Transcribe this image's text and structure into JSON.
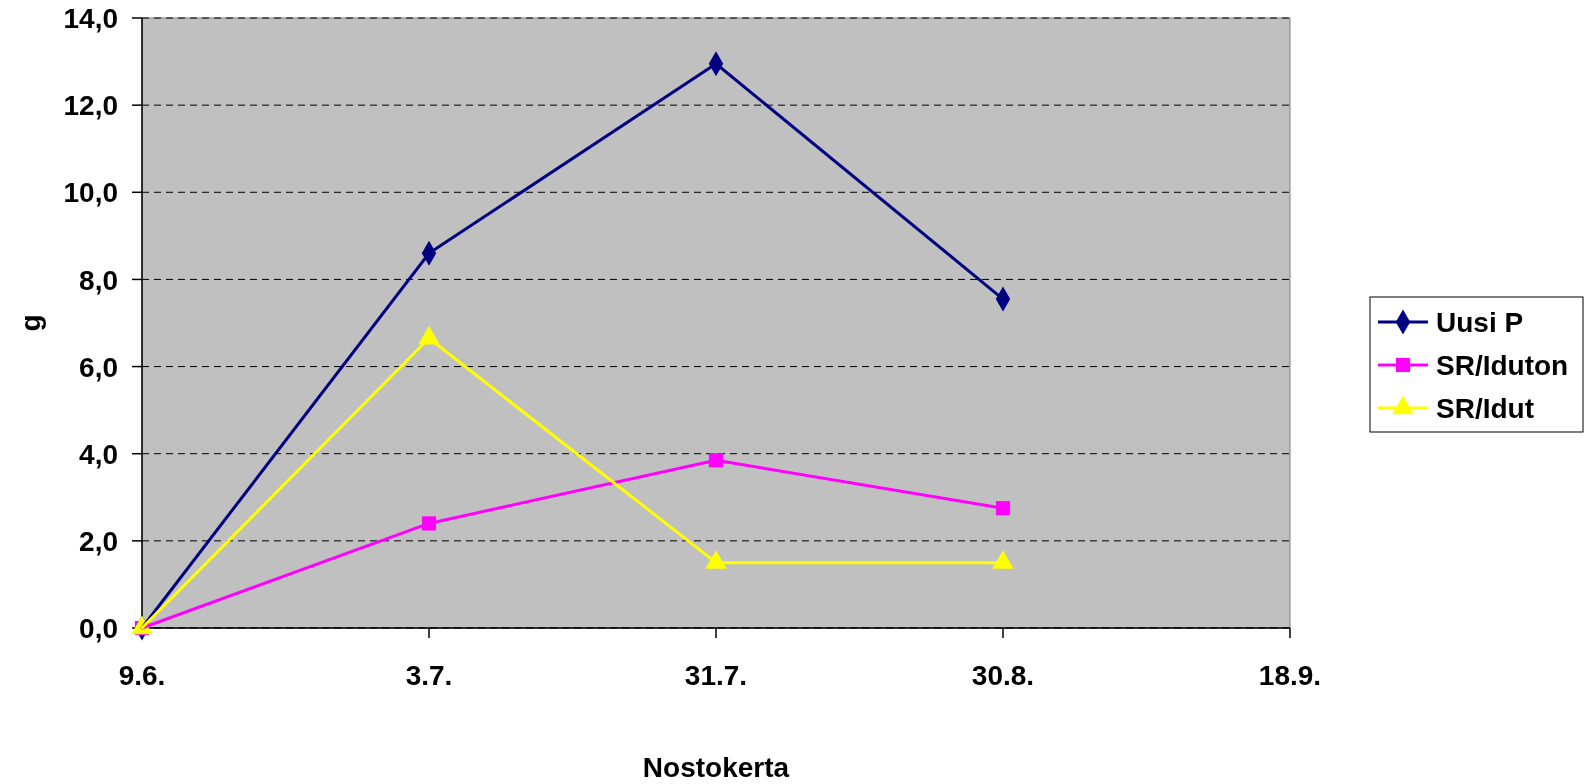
{
  "chart_data": {
    "type": "line",
    "xlabel": "Nostokerta",
    "ylabel": "g",
    "categories": [
      "9.6.",
      "3.7.",
      "31.7.",
      "30.8.",
      "18.9."
    ],
    "series": [
      {
        "name": "Uusi P",
        "color": "#000080",
        "marker": "diamond",
        "values": [
          0,
          8.6,
          12.95,
          7.55,
          null
        ]
      },
      {
        "name": "SR/Iduton",
        "color": "#ff00ff",
        "marker": "square",
        "values": [
          0,
          2.4,
          3.85,
          2.75,
          null
        ]
      },
      {
        "name": "SR/Idut",
        "color": "#ffff00",
        "marker": "triangle",
        "values": [
          0,
          6.65,
          1.5,
          1.5,
          null
        ]
      }
    ],
    "ylim": [
      0,
      14
    ],
    "yticks": [
      {
        "value": 0,
        "label": "0,0"
      },
      {
        "value": 2,
        "label": "2,0"
      },
      {
        "value": 4,
        "label": "4,0"
      },
      {
        "value": 6,
        "label": "6,0"
      },
      {
        "value": 8,
        "label": "8,0"
      },
      {
        "value": 10,
        "label": "10,0"
      },
      {
        "value": 12,
        "label": "12,0"
      },
      {
        "value": 14,
        "label": "14,0"
      }
    ],
    "grid": "y",
    "legend": "right"
  }
}
